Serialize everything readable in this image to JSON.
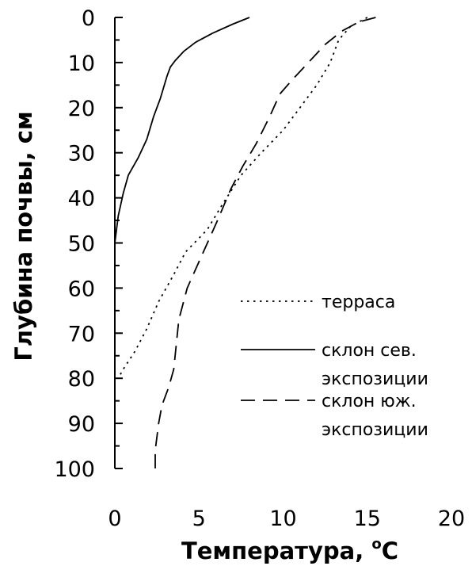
{
  "chart_data": {
    "type": "line",
    "xlabel": "Температура, ",
    "xlabel_super": "o",
    "xlabel_unit": "C",
    "ylabel": "Глубина почвы, см",
    "xlim": [
      0,
      20
    ],
    "ylim": [
      0,
      100
    ],
    "y_inverted": true,
    "x_ticks": [
      "0",
      "5",
      "10",
      "15",
      "20"
    ],
    "y_ticks": [
      "0",
      "10",
      "20",
      "30",
      "40",
      "50",
      "60",
      "70",
      "80",
      "90",
      "100"
    ],
    "grid": false,
    "legend_position": "right",
    "series": [
      {
        "name": "терраса",
        "style": "dotted",
        "legend_lines": [
          "терраса"
        ],
        "points": [
          [
            15.0,
            0
          ],
          [
            14.0,
            2
          ],
          [
            13.3,
            5
          ],
          [
            12.8,
            10
          ],
          [
            12.0,
            15
          ],
          [
            11.0,
            20
          ],
          [
            10.0,
            25
          ],
          [
            8.7,
            30
          ],
          [
            7.5,
            35
          ],
          [
            6.3,
            42
          ],
          [
            5.5,
            47
          ],
          [
            4.2,
            52
          ],
          [
            3.5,
            57
          ],
          [
            2.6,
            63
          ],
          [
            1.9,
            69
          ],
          [
            1.2,
            74
          ],
          [
            0.5,
            78
          ],
          [
            0.2,
            80
          ]
        ]
      },
      {
        "name": "склон сев. экспозиции",
        "style": "solid",
        "legend_lines": [
          "склон сев.",
          "экспозиции"
        ],
        "points": [
          [
            8.0,
            0
          ],
          [
            7.0,
            1.5
          ],
          [
            5.8,
            3.5
          ],
          [
            4.8,
            5.5
          ],
          [
            4.1,
            7.5
          ],
          [
            3.6,
            9.5
          ],
          [
            3.3,
            11
          ],
          [
            3.1,
            13
          ],
          [
            2.7,
            18
          ],
          [
            2.3,
            22
          ],
          [
            1.9,
            27
          ],
          [
            1.4,
            31
          ],
          [
            0.8,
            35
          ],
          [
            0.5,
            39
          ],
          [
            0.2,
            44
          ],
          [
            0.0,
            50
          ]
        ]
      },
      {
        "name": "склон юж. экспозиции",
        "style": "dashed",
        "legend_lines": [
          "склон юж.",
          "экспозиции"
        ],
        "points": [
          [
            15.5,
            0
          ],
          [
            14.5,
            1
          ],
          [
            13.5,
            3
          ],
          [
            12.5,
            6
          ],
          [
            11.5,
            10
          ],
          [
            10.5,
            14
          ],
          [
            9.8,
            17
          ],
          [
            9.2,
            22
          ],
          [
            8.4,
            28
          ],
          [
            7.6,
            33
          ],
          [
            6.9,
            38
          ],
          [
            6.1,
            45
          ],
          [
            5.5,
            50
          ],
          [
            4.9,
            55
          ],
          [
            4.3,
            60
          ],
          [
            3.8,
            67
          ],
          [
            3.5,
            78
          ],
          [
            3.2,
            82
          ],
          [
            2.8,
            86
          ],
          [
            2.6,
            90
          ],
          [
            2.4,
            96
          ],
          [
            2.4,
            100
          ]
        ]
      }
    ]
  }
}
